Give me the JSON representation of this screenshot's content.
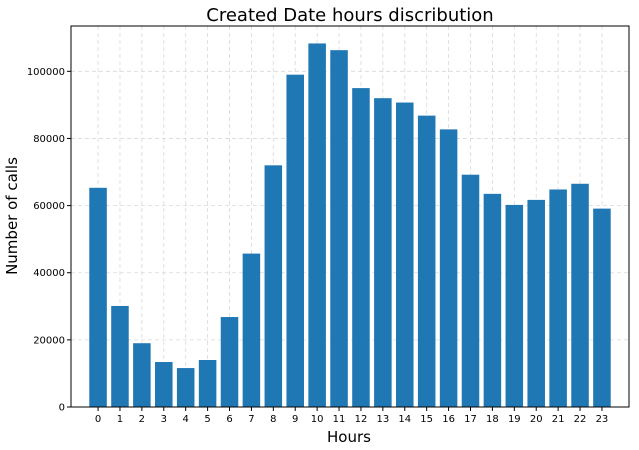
{
  "chart_data": {
    "type": "bar",
    "title": "Created Date hours discribution",
    "xlabel": "Hours",
    "ylabel": "Number of calls",
    "categories": [
      "0",
      "1",
      "2",
      "3",
      "4",
      "5",
      "6",
      "7",
      "8",
      "9",
      "10",
      "11",
      "12",
      "13",
      "14",
      "15",
      "16",
      "17",
      "18",
      "19",
      "20",
      "21",
      "22",
      "23"
    ],
    "values": [
      65300,
      30100,
      19000,
      13400,
      11600,
      14000,
      26800,
      45700,
      72000,
      99000,
      108300,
      106300,
      95000,
      92000,
      90700,
      86800,
      82700,
      69200,
      63500,
      60200,
      61700,
      64800,
      66500,
      59100
    ],
    "ylim": [
      0,
      113500
    ],
    "yticks": [
      0,
      20000,
      40000,
      60000,
      80000,
      100000
    ],
    "grid": true,
    "bar_color": "#1f77b4",
    "grid_color": "#d9d9d9"
  }
}
